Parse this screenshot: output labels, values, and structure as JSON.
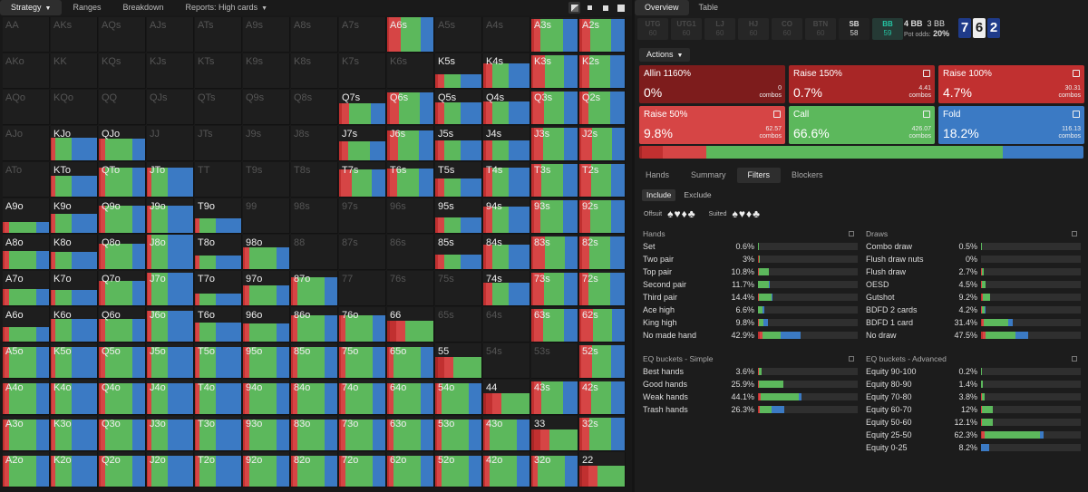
{
  "left_tabs": [
    {
      "label": "Strategy",
      "caret": "▼",
      "active": true
    },
    {
      "label": "Ranges",
      "active": false
    },
    {
      "label": "Breakdown",
      "active": false
    },
    {
      "label": "Reports: High cards",
      "caret": "▼",
      "active": false
    }
  ],
  "view_icons": [
    "grid-large-icon",
    "grid-small-icon",
    "grid-medium-icon",
    "square-icon"
  ],
  "colors": {
    "allin": "#7d1c1c",
    "raise_big": "#a82626",
    "raise_mid": "#c13030",
    "raise_small": "#d64545",
    "call": "#5cb85c",
    "fold": "#3b7ac4",
    "teal": "#25c4a3"
  },
  "grid": {
    "rows": [
      [
        "AA",
        "AKs",
        "AQs",
        "AJs",
        "ATs",
        "A9s",
        "A8s",
        "A7s",
        "A6s",
        "A5s",
        "A4s",
        "A3s",
        "A2s"
      ],
      [
        "AKo",
        "KK",
        "KQs",
        "KJs",
        "KTs",
        "K9s",
        "K8s",
        "K7s",
        "K6s",
        "K5s",
        "K4s",
        "K3s",
        "K2s"
      ],
      [
        "AQo",
        "KQo",
        "QQ",
        "QJs",
        "QTs",
        "Q9s",
        "Q8s",
        "Q7s",
        "Q6s",
        "Q5s",
        "Q4s",
        "Q3s",
        "Q2s"
      ],
      [
        "AJo",
        "KJo",
        "QJo",
        "JJ",
        "JTs",
        "J9s",
        "J8s",
        "J7s",
        "J6s",
        "J5s",
        "J4s",
        "J3s",
        "J2s"
      ],
      [
        "ATo",
        "KTo",
        "QTo",
        "JTo",
        "TT",
        "T9s",
        "T8s",
        "T7s",
        "T6s",
        "T5s",
        "T4s",
        "T3s",
        "T2s"
      ],
      [
        "A9o",
        "K9o",
        "Q9o",
        "J9o",
        "T9o",
        "99",
        "98s",
        "97s",
        "96s",
        "95s",
        "94s",
        "93s",
        "92s"
      ],
      [
        "A8o",
        "K8o",
        "Q8o",
        "J8o",
        "T8o",
        "98o",
        "88",
        "87s",
        "86s",
        "85s",
        "84s",
        "83s",
        "82s"
      ],
      [
        "A7o",
        "K7o",
        "Q7o",
        "J7o",
        "T7o",
        "97o",
        "87o",
        "77",
        "76s",
        "75s",
        "74s",
        "73s",
        "72s"
      ],
      [
        "A6o",
        "K6o",
        "Q6o",
        "J6o",
        "T6o",
        "96o",
        "86o",
        "76o",
        "66",
        "65s",
        "64s",
        "63s",
        "62s"
      ],
      [
        "A5o",
        "K5o",
        "Q5o",
        "J5o",
        "T5o",
        "95o",
        "85o",
        "75o",
        "65o",
        "55",
        "54s",
        "53s",
        "52s"
      ],
      [
        "A4o",
        "K4o",
        "Q4o",
        "J4o",
        "T4o",
        "94o",
        "84o",
        "74o",
        "64o",
        "54o",
        "44",
        "43s",
        "42s"
      ],
      [
        "A3o",
        "K3o",
        "Q3o",
        "J3o",
        "T3o",
        "93o",
        "83o",
        "73o",
        "63o",
        "53o",
        "43o",
        "33",
        "32s"
      ],
      [
        "A2o",
        "K2o",
        "Q2o",
        "J2o",
        "T2o",
        "92o",
        "82o",
        "72o",
        "62o",
        "52o",
        "42o",
        "32o",
        "22"
      ]
    ]
  },
  "right_tabs": [
    {
      "label": "Overview",
      "active": true
    },
    {
      "label": "Table",
      "active": false
    }
  ],
  "positions": [
    {
      "name": "UTG",
      "stack": "60",
      "state": "dim"
    },
    {
      "name": "UTG1",
      "stack": "60",
      "state": "dim"
    },
    {
      "name": "LJ",
      "stack": "60",
      "state": "dim"
    },
    {
      "name": "HJ",
      "stack": "60",
      "state": "dim"
    },
    {
      "name": "CO",
      "stack": "60",
      "state": "dim"
    },
    {
      "name": "BTN",
      "stack": "60",
      "state": "dim"
    },
    {
      "name": "SB",
      "stack": "58",
      "state": "on"
    },
    {
      "name": "BB",
      "stack": "59",
      "state": "teal"
    }
  ],
  "pot": {
    "line1": "4 BB",
    "line1b": "3 BB",
    "odds_label": "Pot odds:",
    "odds": "20%"
  },
  "board": [
    {
      "rank": "7",
      "suit": "blue"
    },
    {
      "rank": "6",
      "suit": "white"
    },
    {
      "rank": "2",
      "suit": "blue"
    }
  ],
  "actions_dropdown": "Actions",
  "actions": [
    {
      "name": "Allin 1160%",
      "pct": "0%",
      "combos": "0",
      "combos_label": "combos",
      "color": "#7d1c1c",
      "icon": false
    },
    {
      "name": "Raise 150%",
      "pct": "0.7%",
      "combos": "4.41",
      "combos_label": "combos",
      "color": "#a82626",
      "icon": true
    },
    {
      "name": "Raise 100%",
      "pct": "4.7%",
      "combos": "30.31",
      "combos_label": "combos",
      "color": "#c13030",
      "icon": true
    },
    {
      "name": "Raise 50%",
      "pct": "9.8%",
      "combos": "62.57",
      "combos_label": "combos",
      "color": "#d64545",
      "icon": true
    },
    {
      "name": "Call",
      "pct": "66.6%",
      "combos": "426.07",
      "combos_label": "combos",
      "color": "#5cb85c",
      "icon": true
    },
    {
      "name": "Fold",
      "pct": "18.2%",
      "combos": "116.13",
      "combos_label": "combos",
      "color": "#3b7ac4",
      "icon": true
    }
  ],
  "sub_tabs": [
    {
      "label": "Hands",
      "active": false
    },
    {
      "label": "Summary",
      "active": false
    },
    {
      "label": "Filters",
      "active": true
    },
    {
      "label": "Blockers",
      "active": false
    }
  ],
  "include_tabs": [
    {
      "label": "Include",
      "active": true
    },
    {
      "label": "Exclude",
      "active": false
    }
  ],
  "suits": {
    "offsuit_label": "Offsuit",
    "offsuit_glyphs": "♠♥♦♣",
    "suited_label": "Suited",
    "suited_glyphs": "♠♥♦♣"
  },
  "filters": {
    "hands": {
      "title": "Hands",
      "rows": [
        {
          "label": "Set",
          "pct": "0.6%",
          "mix": [
            0.1,
            0,
            0,
            0,
            0.5,
            0
          ]
        },
        {
          "label": "Two pair",
          "pct": "3%",
          "mix": [
            0.1,
            0.2,
            0.3,
            0.3,
            0.5,
            0
          ]
        },
        {
          "label": "Top pair",
          "pct": "10.8%",
          "mix": [
            0,
            0,
            0.2,
            0.3,
            10,
            0
          ]
        },
        {
          "label": "Second pair",
          "pct": "11.7%",
          "mix": [
            0,
            0,
            0,
            0.3,
            11,
            0.4
          ]
        },
        {
          "label": "Third pair",
          "pct": "14.4%",
          "mix": [
            0,
            0,
            0,
            0.5,
            13.5,
            0.4
          ]
        },
        {
          "label": "Ace high",
          "pct": "6.6%",
          "mix": [
            0,
            0,
            0,
            0.3,
            3.8,
            2.5
          ]
        },
        {
          "label": "King high",
          "pct": "9.8%",
          "mix": [
            0,
            0,
            0.2,
            0.5,
            4.5,
            4.6
          ]
        },
        {
          "label": "No made hand",
          "pct": "42.9%",
          "mix": [
            0,
            0,
            1.5,
            3,
            18,
            20.4
          ]
        }
      ]
    },
    "draws": {
      "title": "Draws",
      "rows": [
        {
          "label": "Combo draw",
          "pct": "0.5%",
          "mix": [
            0,
            0,
            0.1,
            0.1,
            0.3,
            0
          ]
        },
        {
          "label": "Flush draw nuts",
          "pct": "0%",
          "mix": [
            0,
            0,
            0,
            0,
            0,
            0
          ]
        },
        {
          "label": "Flush draw",
          "pct": "2.7%",
          "mix": [
            0,
            0,
            0.2,
            0.3,
            2.2,
            0
          ]
        },
        {
          "label": "OESD",
          "pct": "4.5%",
          "mix": [
            0,
            0,
            0.3,
            0.4,
            3.8,
            0
          ]
        },
        {
          "label": "Gutshot",
          "pct": "9.2%",
          "mix": [
            0,
            0,
            0.5,
            1,
            7.7,
            0
          ]
        },
        {
          "label": "BDFD 2 cards",
          "pct": "4.2%",
          "mix": [
            0,
            0,
            0.2,
            0.3,
            3.5,
            0.2
          ]
        },
        {
          "label": "BDFD 1 card",
          "pct": "31.4%",
          "mix": [
            0,
            0,
            1,
            2,
            24,
            4.4
          ]
        },
        {
          "label": "No draw",
          "pct": "47.5%",
          "mix": [
            0,
            0.3,
            1.5,
            3,
            30,
            12.7
          ]
        }
      ]
    },
    "eq_simple": {
      "title": "EQ buckets - Simple",
      "rows": [
        {
          "label": "Best hands",
          "pct": "3.6%",
          "mix": [
            0,
            0.1,
            0.3,
            0.5,
            2.7,
            0
          ]
        },
        {
          "label": "Good hands",
          "pct": "25.9%",
          "mix": [
            0,
            0,
            0.3,
            1,
            24.6,
            0
          ]
        },
        {
          "label": "Weak hands",
          "pct": "44.1%",
          "mix": [
            0,
            0,
            1.3,
            1.8,
            38,
            3
          ]
        },
        {
          "label": "Trash hands",
          "pct": "26.3%",
          "mix": [
            0,
            0,
            0.5,
            1,
            12,
            12.8
          ]
        }
      ]
    },
    "eq_advanced": {
      "title": "EQ buckets - Advanced",
      "rows": [
        {
          "label": "Equity 90-100",
          "pct": "0.2%",
          "mix": [
            0,
            0,
            0.05,
            0.05,
            0.1,
            0
          ]
        },
        {
          "label": "Equity 80-90",
          "pct": "1.4%",
          "mix": [
            0,
            0,
            0.1,
            0.2,
            1.1,
            0
          ]
        },
        {
          "label": "Equity 70-80",
          "pct": "3.8%",
          "mix": [
            0,
            0,
            0.2,
            0.3,
            3.3,
            0
          ]
        },
        {
          "label": "Equity 60-70",
          "pct": "12%",
          "mix": [
            0,
            0,
            0.3,
            0.7,
            11,
            0
          ]
        },
        {
          "label": "Equity 50-60",
          "pct": "12.1%",
          "mix": [
            0,
            0,
            0.3,
            0.7,
            11.1,
            0
          ]
        },
        {
          "label": "Equity 25-50",
          "pct": "62.3%",
          "mix": [
            0,
            0,
            1.2,
            2.5,
            55,
            3.6
          ]
        },
        {
          "label": "Equity 0-25",
          "pct": "8.2%",
          "mix": [
            0,
            0,
            0,
            0,
            0,
            8.2
          ]
        }
      ]
    }
  }
}
